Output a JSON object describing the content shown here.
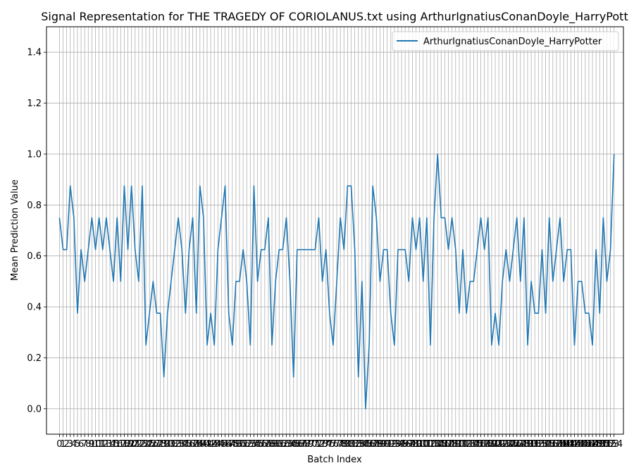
{
  "chart_data": {
    "type": "line",
    "title": "Signal Representation for THE TRAGEDY OF CORIOLANUS.txt using ArthurIgnatiusConanDoyle_HarryPott",
    "xlabel": "Batch Index",
    "ylabel": "Mean Prediction Value",
    "xlim": [
      -3.6,
      156.6
    ],
    "ylim": [
      -0.1,
      1.5
    ],
    "yticks": [
      0.0,
      0.2,
      0.4,
      0.6,
      0.8,
      1.0,
      1.2,
      1.4
    ],
    "ytick_labels": [
      "0.0",
      "0.2",
      "0.4",
      "0.6",
      "0.8",
      "1.0",
      "1.2",
      "1.4"
    ],
    "grid": true,
    "legend_position": "top-right",
    "series": [
      {
        "name": "ArthurIgnatiusConanDoyle_HarryPotter",
        "color": "#1f77b4",
        "x_start": 0,
        "values": [
          0.75,
          0.625,
          0.625,
          0.875,
          0.75,
          0.375,
          0.625,
          0.5,
          0.625,
          0.75,
          0.625,
          0.75,
          0.625,
          0.75,
          0.625,
          0.5,
          0.75,
          0.5,
          0.875,
          0.625,
          0.875,
          0.625,
          0.5,
          0.875,
          0.25,
          0.375,
          0.5,
          0.375,
          0.375,
          0.125,
          0.375,
          0.5,
          0.625,
          0.75,
          0.625,
          0.375,
          0.625,
          0.75,
          0.375,
          0.875,
          0.75,
          0.25,
          0.375,
          0.25,
          0.625,
          0.75,
          0.875,
          0.375,
          0.25,
          0.5,
          0.5,
          0.625,
          0.5,
          0.25,
          0.875,
          0.5,
          0.625,
          0.625,
          0.75,
          0.25,
          0.5,
          0.625,
          0.625,
          0.75,
          0.5,
          0.125,
          0.625,
          0.625,
          0.625,
          0.625,
          0.625,
          0.625,
          0.75,
          0.5,
          0.625,
          0.375,
          0.25,
          0.5,
          0.75,
          0.625,
          0.875,
          0.875,
          0.625,
          0.125,
          0.5,
          0.0,
          0.25,
          0.875,
          0.75,
          0.5,
          0.625,
          0.625,
          0.375,
          0.25,
          0.625,
          0.625,
          0.625,
          0.5,
          0.75,
          0.625,
          0.75,
          0.5,
          0.75,
          0.25,
          0.75,
          1.0,
          0.75,
          0.75,
          0.625,
          0.75,
          0.625,
          0.375,
          0.625,
          0.375,
          0.5,
          0.5,
          0.625,
          0.75,
          0.625,
          0.75,
          0.25,
          0.375,
          0.25,
          0.5,
          0.625,
          0.5,
          0.625,
          0.75,
          0.5,
          0.75,
          0.25,
          0.5,
          0.375,
          0.375,
          0.625,
          0.375,
          0.75,
          0.5,
          0.625,
          0.75,
          0.5,
          0.625,
          0.625,
          0.25,
          0.5,
          0.5,
          0.375,
          0.375,
          0.25,
          0.625,
          0.375,
          0.75,
          0.5,
          0.625,
          1.0
        ]
      }
    ]
  }
}
